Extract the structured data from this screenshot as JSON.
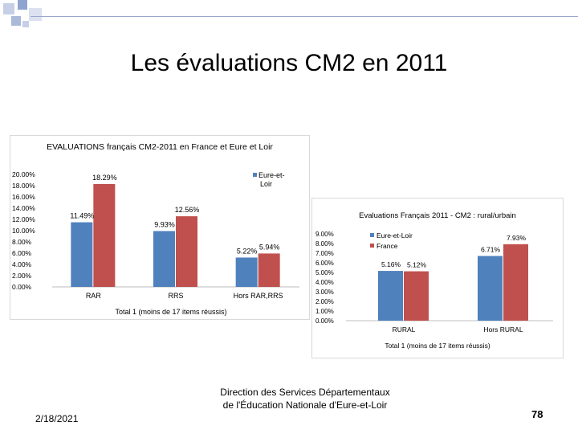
{
  "slide": {
    "title": "Les évaluations CM2 en 2011",
    "date": "2/18/2021",
    "footer_line1": "Direction des Services Départementaux",
    "footer_line2": "de l'Éducation Nationale d'Eure-et-Loir",
    "page_number": "78"
  },
  "colors": {
    "eure_et_loir": "#4f81bd",
    "france": "#c0504d"
  },
  "chart_data": [
    {
      "type": "bar",
      "title": "EVALUATIONS français CM2-2011 en France et Eure et Loir",
      "categories": [
        "RAR",
        "RRS",
        "Hors RAR,RRS"
      ],
      "series": [
        {
          "name": "Eure-et-Loir",
          "values": [
            11.49,
            9.93,
            5.22
          ],
          "labels": [
            "11.49%",
            "9.93%",
            "5.22%"
          ]
        },
        {
          "name": "",
          "values": [
            18.29,
            12.56,
            5.94
          ],
          "labels": [
            "18.29%",
            "12.56%",
            "5.94%"
          ]
        }
      ],
      "ylim": [
        0,
        20
      ],
      "y_ticks": [
        "0.00%",
        "2.00%",
        "4.00%",
        "6.00%",
        "8.00%",
        "10.00%",
        "12.00%",
        "14.00%",
        "16.00%",
        "18.00%",
        "20.00%"
      ],
      "xlabel": "Total 1 (moins de 17 items réussis)",
      "legend_labels": [
        "Eure-et-",
        "Loir"
      ],
      "legend": "top-right"
    },
    {
      "type": "bar",
      "title": "Evaluations Français 2011 - CM2 : rural/urbain",
      "categories": [
        "RURAL",
        "Hors RURAL"
      ],
      "series": [
        {
          "name": "Eure-et-Loir",
          "values": [
            5.16,
            6.71
          ],
          "labels": [
            "5.16%",
            "6.71%"
          ]
        },
        {
          "name": "France",
          "values": [
            5.12,
            7.93
          ],
          "labels": [
            "5.12%",
            "7.93%"
          ]
        }
      ],
      "ylim": [
        0,
        9
      ],
      "y_ticks": [
        "0.00%",
        "1.00%",
        "2.00%",
        "3.00%",
        "4.00%",
        "5.00%",
        "6.00%",
        "7.00%",
        "8.00%",
        "9.00%"
      ],
      "xlabel": "Total 1 (moins de 17 items réussis)",
      "legend": "top-left"
    }
  ]
}
